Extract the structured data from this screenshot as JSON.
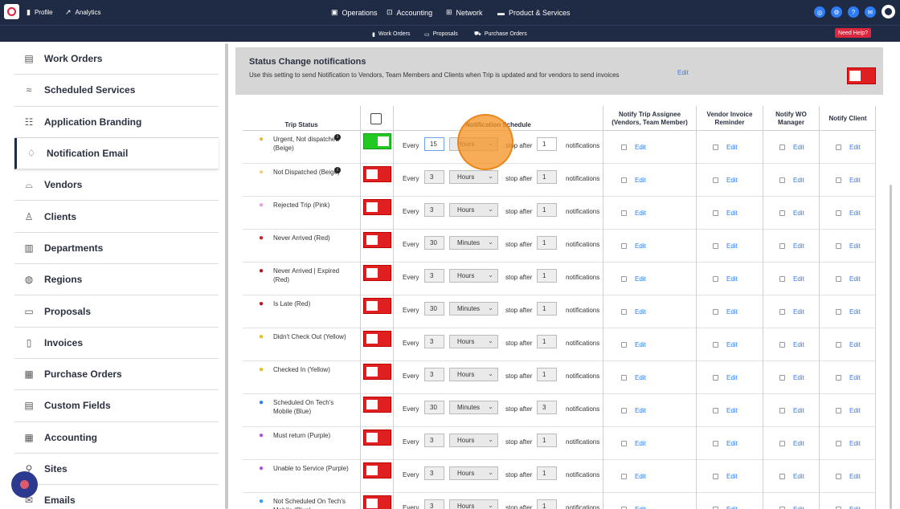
{
  "topbar": {
    "left": [
      {
        "label": "Profile",
        "icon": "profile-icon"
      },
      {
        "label": "Analytics",
        "icon": "analytics-icon"
      }
    ],
    "center": [
      {
        "label": "Operations",
        "icon": "clipboard-icon"
      },
      {
        "label": "Accounting",
        "icon": "accounting-icon"
      },
      {
        "label": "Network",
        "icon": "network-icon"
      },
      {
        "label": "Product & Services",
        "icon": "briefcase-icon"
      }
    ]
  },
  "subbar": {
    "items": [
      {
        "label": "Work Orders"
      },
      {
        "label": "Proposals"
      },
      {
        "label": "Purchase Orders"
      }
    ],
    "help": "Need Help?"
  },
  "sidebar": {
    "items": [
      {
        "label": "Work Orders",
        "icon": "clipboard-icon"
      },
      {
        "label": "Scheduled Services",
        "icon": "handshake-icon"
      },
      {
        "label": "Application Branding",
        "icon": "users-icon"
      },
      {
        "label": "Notification Email",
        "icon": "bell-icon",
        "active": true
      },
      {
        "label": "Vendors",
        "icon": "hardhat-icon"
      },
      {
        "label": "Clients",
        "icon": "user-icon"
      },
      {
        "label": "Departments",
        "icon": "building-icon"
      },
      {
        "label": "Regions",
        "icon": "globe-icon"
      },
      {
        "label": "Proposals",
        "icon": "proposal-icon"
      },
      {
        "label": "Invoices",
        "icon": "invoice-icon"
      },
      {
        "label": "Purchase Orders",
        "icon": "purchase-icon"
      },
      {
        "label": "Custom Fields",
        "icon": "fields-icon"
      },
      {
        "label": "Accounting",
        "icon": "calculator-icon"
      },
      {
        "label": "Sites",
        "icon": "sites-icon"
      },
      {
        "label": "Emails",
        "icon": "mail-icon"
      }
    ]
  },
  "banner": {
    "title": "Status Change notifications",
    "description": "Use this setting to send Notification to Vendors, Team Members and Clients when Trip is updated and for vendors to send invoices",
    "edit": "Edit"
  },
  "table": {
    "headers": {
      "status": "Trip Status",
      "schedule": "Notification Schedule",
      "assignee": "Notify Trip Assignee (Vendors, Team Member)",
      "vendor_invoice": "Vendor Invoice Reminder",
      "wo_manager": "Notify WO Manager",
      "client": "Notify Client"
    },
    "labels": {
      "every": "Every",
      "stop_after": "stop after",
      "notifications": "notifications",
      "edit": "Edit"
    },
    "rows": [
      {
        "status": "Urgent, Not dispatched (Beige)",
        "pin_color": "#e6b84a",
        "info": true,
        "enabled": true,
        "every": "15",
        "unit": "Hours",
        "stop_after": "1"
      },
      {
        "status": "Not Dispatched (Beige)",
        "pin_color": "#f0d08a",
        "info": true,
        "enabled": false,
        "every": "3",
        "unit": "Hours",
        "stop_after": "1"
      },
      {
        "status": "Rejected Trip (Pink)",
        "pin_color": "#e8a0e0",
        "info": false,
        "enabled": false,
        "every": "3",
        "unit": "Hours",
        "stop_after": "1"
      },
      {
        "status": "Never Arrived (Red)",
        "pin_color": "#d0202a",
        "info": false,
        "enabled": false,
        "every": "30",
        "unit": "Minutes",
        "stop_after": "1"
      },
      {
        "status": "Never Arrived | Expired (Red)",
        "pin_color": "#c01020",
        "info": false,
        "enabled": false,
        "every": "3",
        "unit": "Hours",
        "stop_after": "1"
      },
      {
        "status": "Is Late (Red)",
        "pin_color": "#c01020",
        "info": false,
        "enabled": false,
        "every": "30",
        "unit": "Minutes",
        "stop_after": "1"
      },
      {
        "status": "Didn't Check Out (Yellow)",
        "pin_color": "#e6c020",
        "info": false,
        "enabled": false,
        "every": "3",
        "unit": "Hours",
        "stop_after": "1"
      },
      {
        "status": "Checked In (Yellow)",
        "pin_color": "#e6c020",
        "info": false,
        "enabled": false,
        "every": "3",
        "unit": "Hours",
        "stop_after": "1"
      },
      {
        "status": "Scheduled On Tech's Mobile (Blue)",
        "pin_color": "#2e7cf6",
        "info": false,
        "enabled": false,
        "every": "30",
        "unit": "Minutes",
        "stop_after": "3"
      },
      {
        "status": "Must return (Purple)",
        "pin_color": "#b050e0",
        "info": false,
        "enabled": false,
        "every": "3",
        "unit": "Hours",
        "stop_after": "1"
      },
      {
        "status": "Unable to Service (Purple)",
        "pin_color": "#b050e0",
        "info": false,
        "enabled": false,
        "every": "3",
        "unit": "Hours",
        "stop_after": "1"
      },
      {
        "status": "Not Scheduled On Tech's Mobile (Blue)",
        "pin_color": "#2e9cf6",
        "info": false,
        "enabled": false,
        "every": "3",
        "unit": "Hours",
        "stop_after": "1"
      }
    ]
  }
}
